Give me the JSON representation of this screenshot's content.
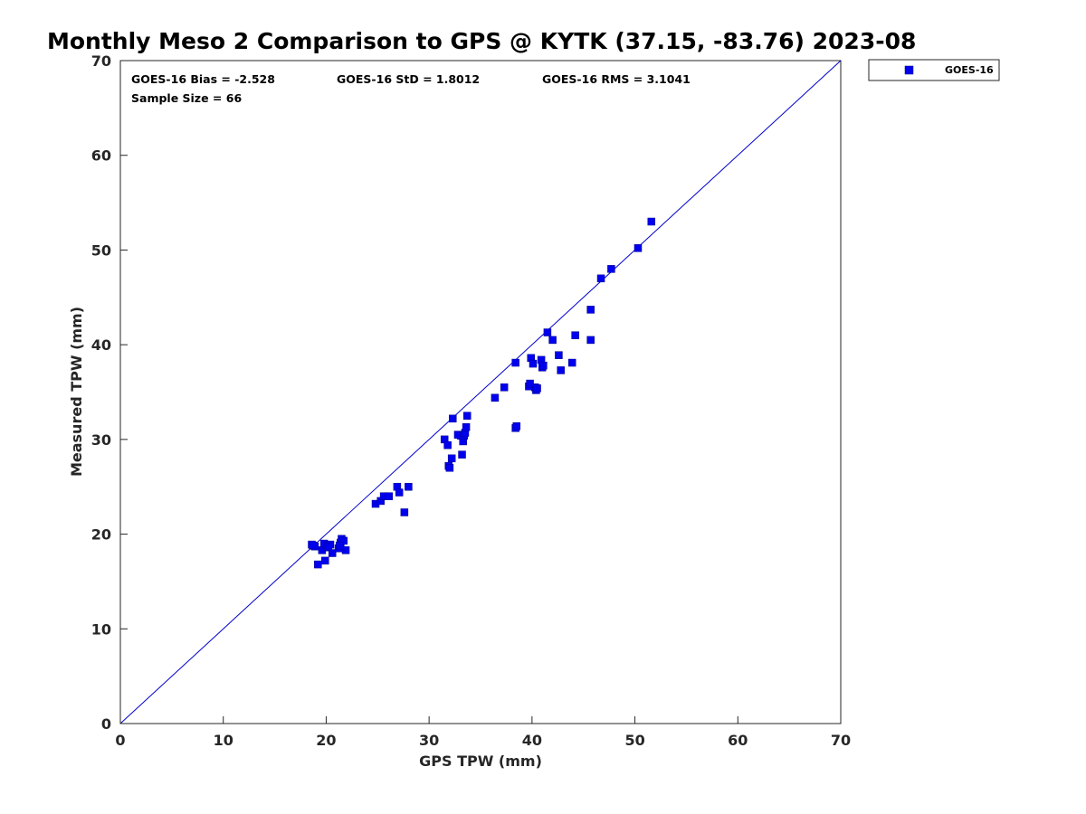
{
  "chart_data": {
    "type": "scatter",
    "title": "Monthly Meso 2 Comparison to GPS @ KYTK (37.15, -83.76) 2023-08",
    "xlabel": "GPS TPW (mm)",
    "ylabel": "Measured TPW (mm)",
    "xlim": [
      0,
      70
    ],
    "ylim": [
      0,
      70
    ],
    "xticks": [
      "0",
      "10",
      "20",
      "30",
      "40",
      "50",
      "60",
      "70"
    ],
    "yticks": [
      "0",
      "10",
      "20",
      "30",
      "40",
      "50",
      "60",
      "70"
    ],
    "grid": false,
    "legend": {
      "position": "outside-top-right",
      "entries": [
        "GOES-16"
      ]
    },
    "stats": {
      "bias": "GOES-16 Bias = -2.528",
      "std": "GOES-16 StD = 1.8012",
      "rms": "GOES-16 RMS = 3.1041",
      "sample": "Sample Size = 66"
    },
    "reference_line": {
      "name": "1:1 line",
      "from": [
        0,
        0
      ],
      "to": [
        70,
        70
      ]
    },
    "colors": {
      "series": "#0000ee",
      "reference_line": "#0000cc",
      "axes": "#262626"
    },
    "series": [
      {
        "name": "GOES-16",
        "marker": "square",
        "points": [
          [
            18.7,
            18.8
          ],
          [
            19.2,
            16.8
          ],
          [
            19.6,
            18.3
          ],
          [
            19.8,
            19.0
          ],
          [
            19.9,
            17.2
          ],
          [
            20.1,
            18.6
          ],
          [
            20.4,
            18.9
          ],
          [
            20.6,
            18.0
          ],
          [
            21.2,
            18.5
          ],
          [
            21.4,
            19.1
          ],
          [
            21.5,
            19.5
          ],
          [
            21.7,
            19.3
          ],
          [
            21.9,
            18.3
          ],
          [
            18.9,
            18.7
          ],
          [
            24.8,
            23.2
          ],
          [
            25.3,
            23.5
          ],
          [
            25.6,
            24.0
          ],
          [
            26.1,
            24.0
          ],
          [
            26.9,
            25.0
          ],
          [
            27.1,
            24.4
          ],
          [
            27.6,
            22.3
          ],
          [
            28.0,
            25.0
          ],
          [
            31.5,
            30.0
          ],
          [
            31.8,
            29.4
          ],
          [
            31.9,
            27.2
          ],
          [
            32.0,
            27.0
          ],
          [
            32.2,
            28.0
          ],
          [
            32.3,
            32.2
          ],
          [
            32.8,
            30.5
          ],
          [
            33.1,
            30.4
          ],
          [
            33.2,
            28.4
          ],
          [
            33.3,
            29.8
          ],
          [
            33.4,
            30.4
          ],
          [
            33.5,
            30.7
          ],
          [
            33.6,
            31.3
          ],
          [
            33.7,
            32.5
          ],
          [
            36.4,
            34.4
          ],
          [
            37.3,
            35.5
          ],
          [
            38.4,
            38.1
          ],
          [
            38.4,
            31.2
          ],
          [
            38.5,
            31.4
          ],
          [
            39.7,
            35.6
          ],
          [
            39.8,
            35.9
          ],
          [
            39.9,
            38.6
          ],
          [
            40.1,
            38.0
          ],
          [
            40.3,
            35.5
          ],
          [
            40.4,
            35.2
          ],
          [
            40.5,
            35.4
          ],
          [
            40.9,
            38.4
          ],
          [
            41.0,
            37.6
          ],
          [
            41.1,
            37.8
          ],
          [
            41.5,
            41.3
          ],
          [
            42.0,
            40.5
          ],
          [
            42.6,
            38.9
          ],
          [
            42.8,
            37.3
          ],
          [
            43.9,
            38.1
          ],
          [
            44.2,
            41.0
          ],
          [
            45.7,
            43.7
          ],
          [
            45.7,
            40.5
          ],
          [
            46.7,
            47.0
          ],
          [
            47.7,
            48.0
          ],
          [
            50.3,
            50.2
          ],
          [
            51.6,
            53.0
          ],
          [
            18.6,
            18.9
          ],
          [
            20.2,
            18.7
          ],
          [
            21.3,
            18.8
          ]
        ]
      }
    ]
  }
}
